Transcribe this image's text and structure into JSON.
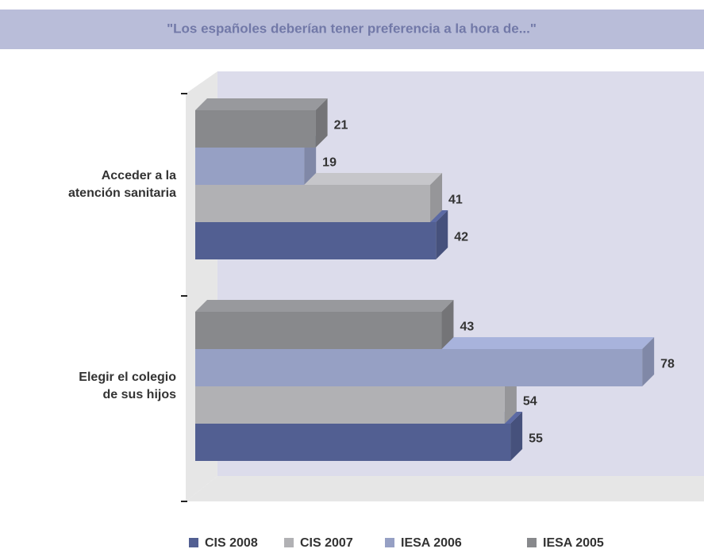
{
  "chart_data": {
    "type": "bar3d-horizontal",
    "title": "\"Los españoles deberían tener preferencia a la hora de...\"",
    "categories": [
      [
        "Acceder a la",
        "atención sanitaria"
      ],
      [
        "Elegir el colegio",
        "de sus hijos"
      ]
    ],
    "series": [
      {
        "name": "CIS 2008",
        "color": "#525f92",
        "values": [
          42,
          55
        ]
      },
      {
        "name": "CIS 2007",
        "color": "#b1b1b4",
        "values": [
          41,
          54
        ]
      },
      {
        "name": "IESA 2006",
        "color": "#96a0c4",
        "values": [
          19,
          78
        ]
      },
      {
        "name": "IESA 2005",
        "color": "#88898c",
        "values": [
          21,
          43
        ]
      }
    ],
    "xlim": [
      0,
      88
    ],
    "legend": "bottom"
  }
}
